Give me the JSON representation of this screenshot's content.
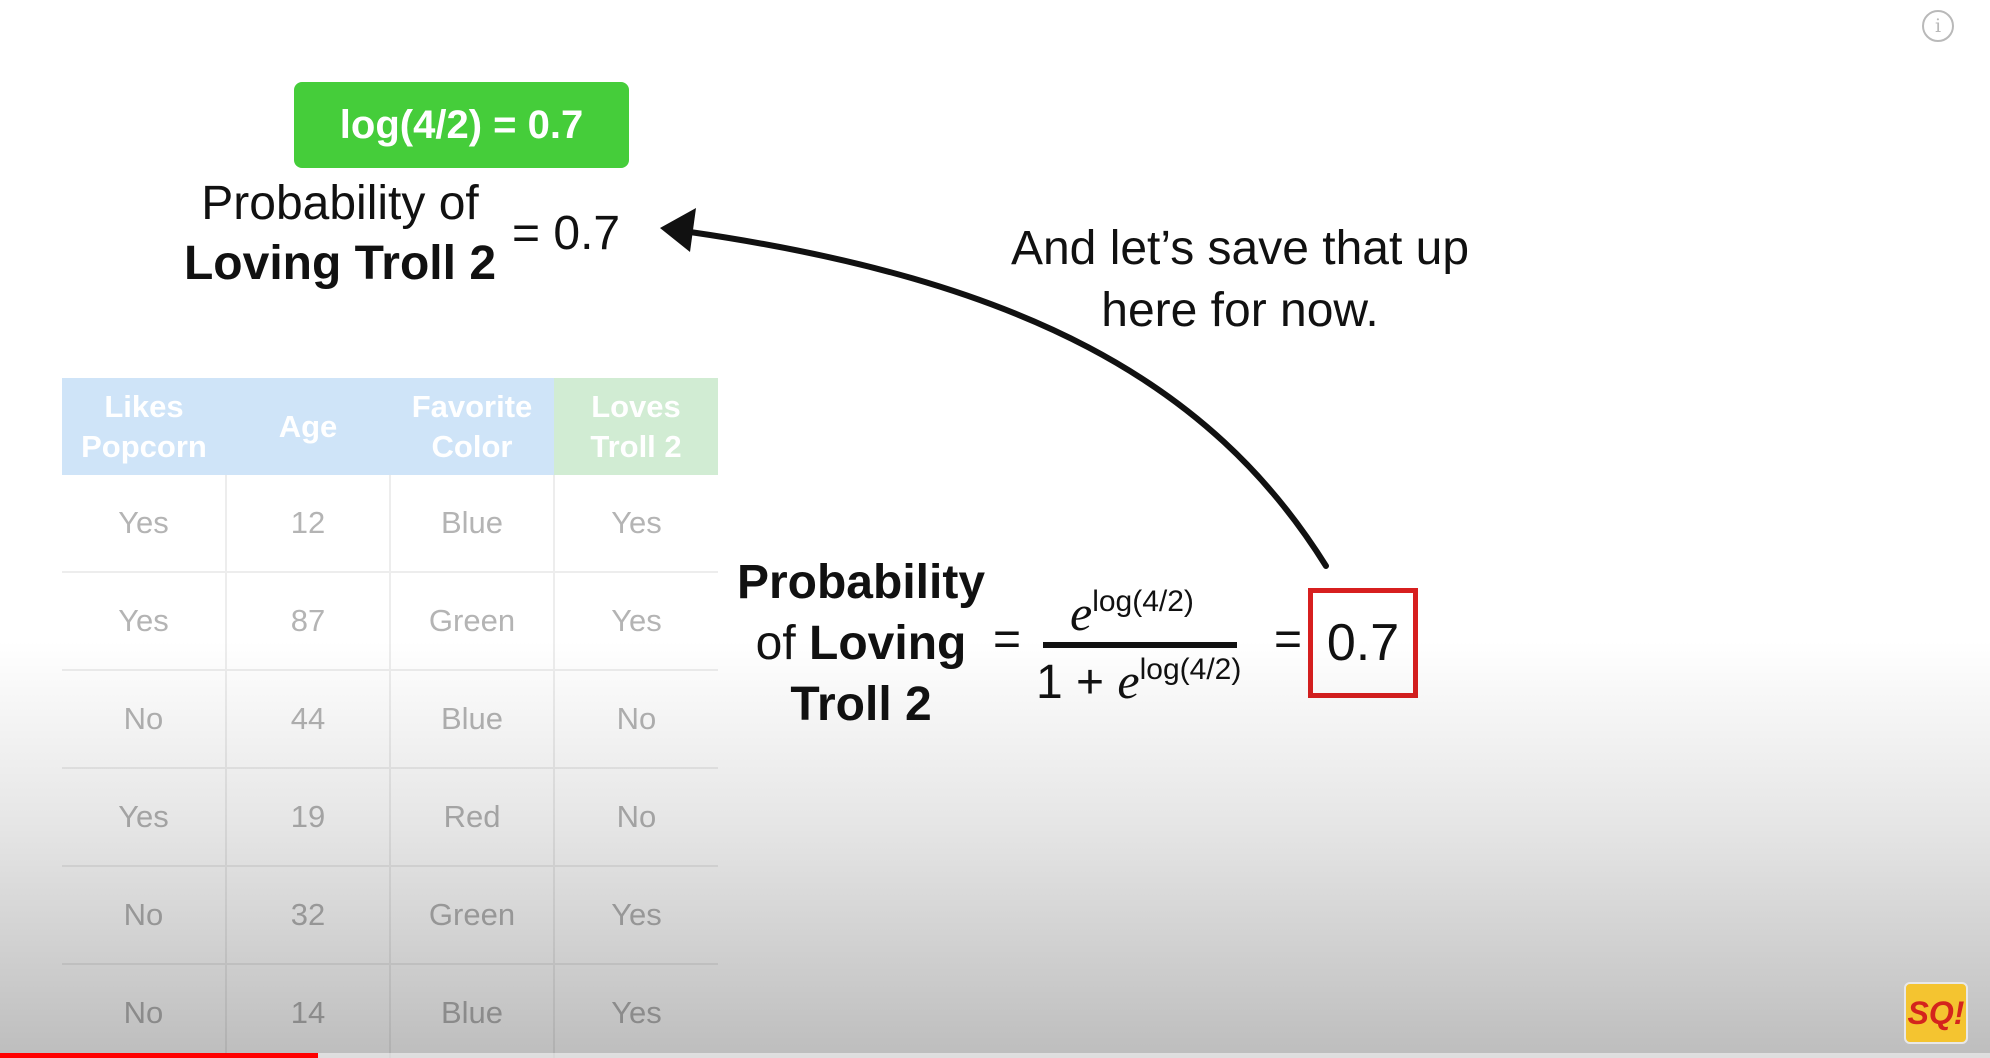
{
  "green_box": {
    "text": "log(4/2) = 0.7"
  },
  "saved_value": {
    "line1": "Probability of",
    "line2": "Loving Troll 2",
    "equals": "= 0.7"
  },
  "caption": {
    "line1": "And let’s save that up",
    "line2": "here for now."
  },
  "table": {
    "headers": [
      {
        "line1": "Likes",
        "line2": "Popcorn"
      },
      {
        "line1": "Age",
        "line2": ""
      },
      {
        "line1": "Favorite",
        "line2": "Color"
      },
      {
        "line1": "Loves",
        "line2": "Troll 2"
      }
    ],
    "rows": [
      [
        "Yes",
        "12",
        "Blue",
        "Yes"
      ],
      [
        "Yes",
        "87",
        "Green",
        "Yes"
      ],
      [
        "No",
        "44",
        "Blue",
        "No"
      ],
      [
        "Yes",
        "19",
        "Red",
        "No"
      ],
      [
        "No",
        "32",
        "Green",
        "Yes"
      ],
      [
        "No",
        "14",
        "Blue",
        "Yes"
      ]
    ]
  },
  "equation": {
    "label_line1": "Probability",
    "label_line2_plain": "of",
    "label_line2_bold": "Loving",
    "label_line3": "Troll 2",
    "equals": "=",
    "numerator_base": "e",
    "numerator_exponent": "log(4/2)",
    "denominator_prefix": "1 + ",
    "denominator_base": "e",
    "denominator_exponent": "log(4/2)",
    "equals2": "=",
    "result": "0.7"
  },
  "overlay": {
    "info_icon": "i",
    "channel_logo": "SQ!"
  },
  "video_progress": {
    "fraction": 0.16
  },
  "colors": {
    "accent_green": "#45cd3a",
    "result_border": "#d71f1f",
    "progress": "#ff0000"
  }
}
